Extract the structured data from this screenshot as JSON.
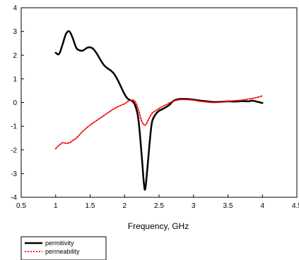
{
  "chart_data": {
    "type": "line",
    "title": "",
    "xlabel": "Frequency, GHz",
    "ylabel": "",
    "xlim": [
      0.5,
      4.5
    ],
    "ylim": [
      -4,
      4
    ],
    "x_ticks": [
      0.5,
      1,
      1.5,
      2,
      2.5,
      3,
      3.5,
      4,
      4.5
    ],
    "y_ticks": [
      -4,
      -3,
      -2,
      -1,
      0,
      1,
      2,
      3,
      4
    ],
    "x_tick_labels": [
      "0.5",
      "1",
      "1.5",
      "2",
      "2.5",
      "3",
      "3.5",
      "4",
      "4.5"
    ],
    "y_tick_labels": [
      "-4",
      "-3",
      "-2",
      "-1",
      "0",
      "1",
      "2",
      "3",
      "4"
    ],
    "grid": false,
    "legend_position": "bottom-left, below plot",
    "series": [
      {
        "name": "permitivity",
        "color": "#000000",
        "style": "solid",
        "points": [
          [
            1.0,
            2.1
          ],
          [
            1.05,
            2.05
          ],
          [
            1.1,
            2.45
          ],
          [
            1.15,
            2.9
          ],
          [
            1.2,
            3.0
          ],
          [
            1.25,
            2.7
          ],
          [
            1.3,
            2.3
          ],
          [
            1.35,
            2.2
          ],
          [
            1.4,
            2.2
          ],
          [
            1.45,
            2.3
          ],
          [
            1.5,
            2.33
          ],
          [
            1.55,
            2.25
          ],
          [
            1.6,
            2.05
          ],
          [
            1.65,
            1.8
          ],
          [
            1.7,
            1.58
          ],
          [
            1.75,
            1.45
          ],
          [
            1.8,
            1.35
          ],
          [
            1.85,
            1.2
          ],
          [
            1.9,
            0.95
          ],
          [
            1.95,
            0.65
          ],
          [
            2.0,
            0.35
          ],
          [
            2.05,
            0.15
          ],
          [
            2.1,
            0.08
          ],
          [
            2.15,
            -0.1
          ],
          [
            2.2,
            -0.7
          ],
          [
            2.25,
            -2.3
          ],
          [
            2.28,
            -3.4
          ],
          [
            2.3,
            -3.65
          ],
          [
            2.33,
            -2.8
          ],
          [
            2.37,
            -1.5
          ],
          [
            2.4,
            -0.8
          ],
          [
            2.45,
            -0.5
          ],
          [
            2.5,
            -0.35
          ],
          [
            2.55,
            -0.28
          ],
          [
            2.6,
            -0.2
          ],
          [
            2.65,
            -0.1
          ],
          [
            2.7,
            0.05
          ],
          [
            2.75,
            0.12
          ],
          [
            2.8,
            0.15
          ],
          [
            2.9,
            0.15
          ],
          [
            3.0,
            0.12
          ],
          [
            3.1,
            0.08
          ],
          [
            3.2,
            0.05
          ],
          [
            3.3,
            0.02
          ],
          [
            3.4,
            0.03
          ],
          [
            3.5,
            0.05
          ],
          [
            3.6,
            0.04
          ],
          [
            3.7,
            0.06
          ],
          [
            3.8,
            0.05
          ],
          [
            3.85,
            0.08
          ],
          [
            3.9,
            0.05
          ],
          [
            4.0,
            -0.02
          ]
        ]
      },
      {
        "name": "permeability",
        "color": "#ff0000",
        "style": "dotted",
        "points": [
          [
            1.0,
            -1.95
          ],
          [
            1.05,
            -1.8
          ],
          [
            1.1,
            -1.7
          ],
          [
            1.15,
            -1.72
          ],
          [
            1.2,
            -1.7
          ],
          [
            1.25,
            -1.6
          ],
          [
            1.3,
            -1.5
          ],
          [
            1.35,
            -1.35
          ],
          [
            1.4,
            -1.2
          ],
          [
            1.5,
            -0.95
          ],
          [
            1.6,
            -0.75
          ],
          [
            1.7,
            -0.55
          ],
          [
            1.8,
            -0.35
          ],
          [
            1.9,
            -0.18
          ],
          [
            2.0,
            -0.05
          ],
          [
            2.05,
            0.05
          ],
          [
            2.1,
            0.1
          ],
          [
            2.15,
            0.05
          ],
          [
            2.2,
            -0.3
          ],
          [
            2.25,
            -0.8
          ],
          [
            2.3,
            -0.95
          ],
          [
            2.35,
            -0.7
          ],
          [
            2.4,
            -0.45
          ],
          [
            2.45,
            -0.35
          ],
          [
            2.5,
            -0.25
          ],
          [
            2.6,
            -0.1
          ],
          [
            2.7,
            0.05
          ],
          [
            2.8,
            0.12
          ],
          [
            2.9,
            0.12
          ],
          [
            3.0,
            0.1
          ],
          [
            3.1,
            0.05
          ],
          [
            3.2,
            0.02
          ],
          [
            3.3,
            0.0
          ],
          [
            3.4,
            0.02
          ],
          [
            3.5,
            0.05
          ],
          [
            3.6,
            0.08
          ],
          [
            3.7,
            0.1
          ],
          [
            3.8,
            0.15
          ],
          [
            3.9,
            0.2
          ],
          [
            4.0,
            0.28
          ]
        ]
      }
    ]
  }
}
